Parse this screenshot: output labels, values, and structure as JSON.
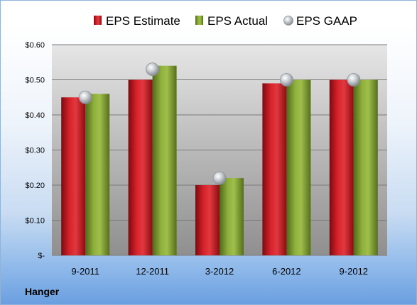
{
  "company": "Hanger",
  "chart_data": {
    "type": "bar",
    "categories": [
      "9-2011",
      "12-2011",
      "3-2012",
      "6-2012",
      "9-2012"
    ],
    "series": [
      {
        "name": "EPS Estimate",
        "type": "bar",
        "color": "#c0141c",
        "values": [
          0.45,
          0.5,
          0.2,
          0.49,
          0.5
        ]
      },
      {
        "name": "EPS Actual",
        "type": "bar",
        "color": "#7a9a2e",
        "values": [
          0.46,
          0.54,
          0.22,
          0.5,
          0.5
        ]
      },
      {
        "name": "EPS GAAP",
        "type": "marker",
        "color": "#b9bec4",
        "values": [
          0.45,
          0.53,
          0.22,
          0.5,
          0.5
        ]
      }
    ],
    "ylim": [
      0,
      0.6
    ],
    "yticks": [
      0,
      0.1,
      0.2,
      0.3,
      0.4,
      0.5,
      0.6
    ],
    "ytick_labels": [
      "$-",
      "$0.10",
      "$0.20",
      "$0.30",
      "$0.40",
      "$0.50",
      "$0.60"
    ],
    "grid": true,
    "legend_position": "top"
  }
}
